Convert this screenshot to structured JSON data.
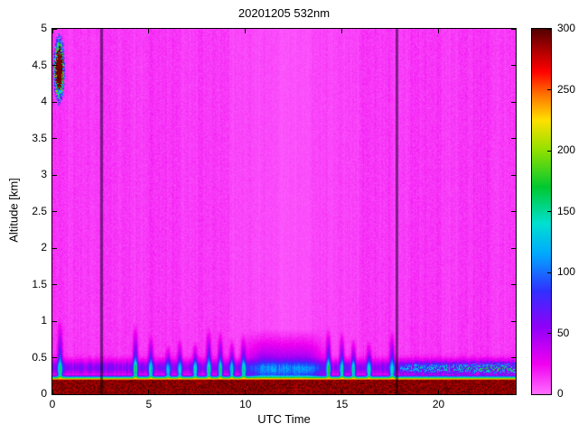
{
  "chart_data": {
    "type": "heatmap",
    "title": "20201205 532nm",
    "xlabel": "UTC Time",
    "ylabel": "Altitude [km]",
    "xlim": [
      0,
      24
    ],
    "ylim": [
      0,
      5
    ],
    "xticks": [
      0,
      5,
      10,
      15,
      20
    ],
    "xtick_labels": [
      "0",
      "5",
      "10",
      "15",
      "20"
    ],
    "yticks": [
      0,
      0.5,
      1,
      1.5,
      2,
      2.5,
      3,
      3.5,
      4,
      4.5,
      5
    ],
    "ytick_labels": [
      "0",
      "0.5",
      "1",
      "1.5",
      "2",
      "2.5",
      "3",
      "3.5",
      "4",
      "4.5",
      "5"
    ],
    "grid": false,
    "legend": "none",
    "colorbar": {
      "position": "right",
      "min": 0,
      "max": 300,
      "ticks": [
        0,
        50,
        100,
        150,
        200,
        250,
        300
      ],
      "tick_labels": [
        "0",
        "50",
        "100",
        "150",
        "200",
        "250",
        "300"
      ]
    },
    "colormap_stops": [
      {
        "value": 0,
        "color": "#ff6eff"
      },
      {
        "value": 25,
        "color": "#f000f0"
      },
      {
        "value": 55,
        "color": "#9000f8"
      },
      {
        "value": 85,
        "color": "#3030ff"
      },
      {
        "value": 115,
        "color": "#00a8ff"
      },
      {
        "value": 140,
        "color": "#00e0d0"
      },
      {
        "value": 170,
        "color": "#00c830"
      },
      {
        "value": 200,
        "color": "#90e000"
      },
      {
        "value": 225,
        "color": "#ffe000"
      },
      {
        "value": 245,
        "color": "#ff7800"
      },
      {
        "value": 265,
        "color": "#ff0000"
      },
      {
        "value": 285,
        "color": "#a00000"
      },
      {
        "value": 300,
        "color": "#500000"
      }
    ],
    "background": {
      "base_value": 13,
      "daytime_dip": {
        "center": 12.2,
        "sigma": 2.0,
        "amount": 5.5
      },
      "stripe_amplitude": 0.4,
      "pixel_noise": 0.3
    },
    "surface_band": {
      "top_km": 0.2,
      "value": 290
    },
    "boundary_layer": {
      "center_km": 0.36,
      "sigma_km": 0.07,
      "base_value": 45
    },
    "plumes": [
      {
        "t": 0.4,
        "top_km": 1.05,
        "value": 120
      },
      {
        "t": 4.3,
        "top_km": 1.0,
        "value": 125
      },
      {
        "t": 5.1,
        "top_km": 0.85,
        "value": 110
      },
      {
        "t": 6.0,
        "top_km": 0.7,
        "value": 95
      },
      {
        "t": 6.6,
        "top_km": 0.8,
        "value": 100
      },
      {
        "t": 7.4,
        "top_km": 0.75,
        "value": 100
      },
      {
        "t": 8.1,
        "top_km": 0.95,
        "value": 120
      },
      {
        "t": 8.7,
        "top_km": 0.9,
        "value": 115
      },
      {
        "t": 9.3,
        "top_km": 0.8,
        "value": 110
      },
      {
        "t": 9.9,
        "top_km": 0.85,
        "value": 110
      },
      {
        "t": 14.3,
        "top_km": 0.95,
        "value": 120
      },
      {
        "t": 15.0,
        "top_km": 0.9,
        "value": 115
      },
      {
        "t": 15.6,
        "top_km": 0.8,
        "value": 110
      },
      {
        "t": 16.4,
        "top_km": 0.75,
        "value": 105
      },
      {
        "t": 17.6,
        "top_km": 0.9,
        "value": 115
      }
    ],
    "midday_haze": {
      "t_start": 10.2,
      "t_end": 13.8,
      "top_km": 0.9,
      "value": 70
    },
    "evening_speckle": {
      "t_start": 18.0,
      "t_end": 24.0,
      "center_km": 0.35,
      "value": 120
    },
    "cloud": {
      "t_center": 0.35,
      "t_sigma": 0.18,
      "alt_center": 4.45,
      "alt_sigma": 0.28,
      "core_value": 295,
      "fringe_value": 150
    },
    "gap_times": [
      2.55,
      17.85
    ]
  }
}
